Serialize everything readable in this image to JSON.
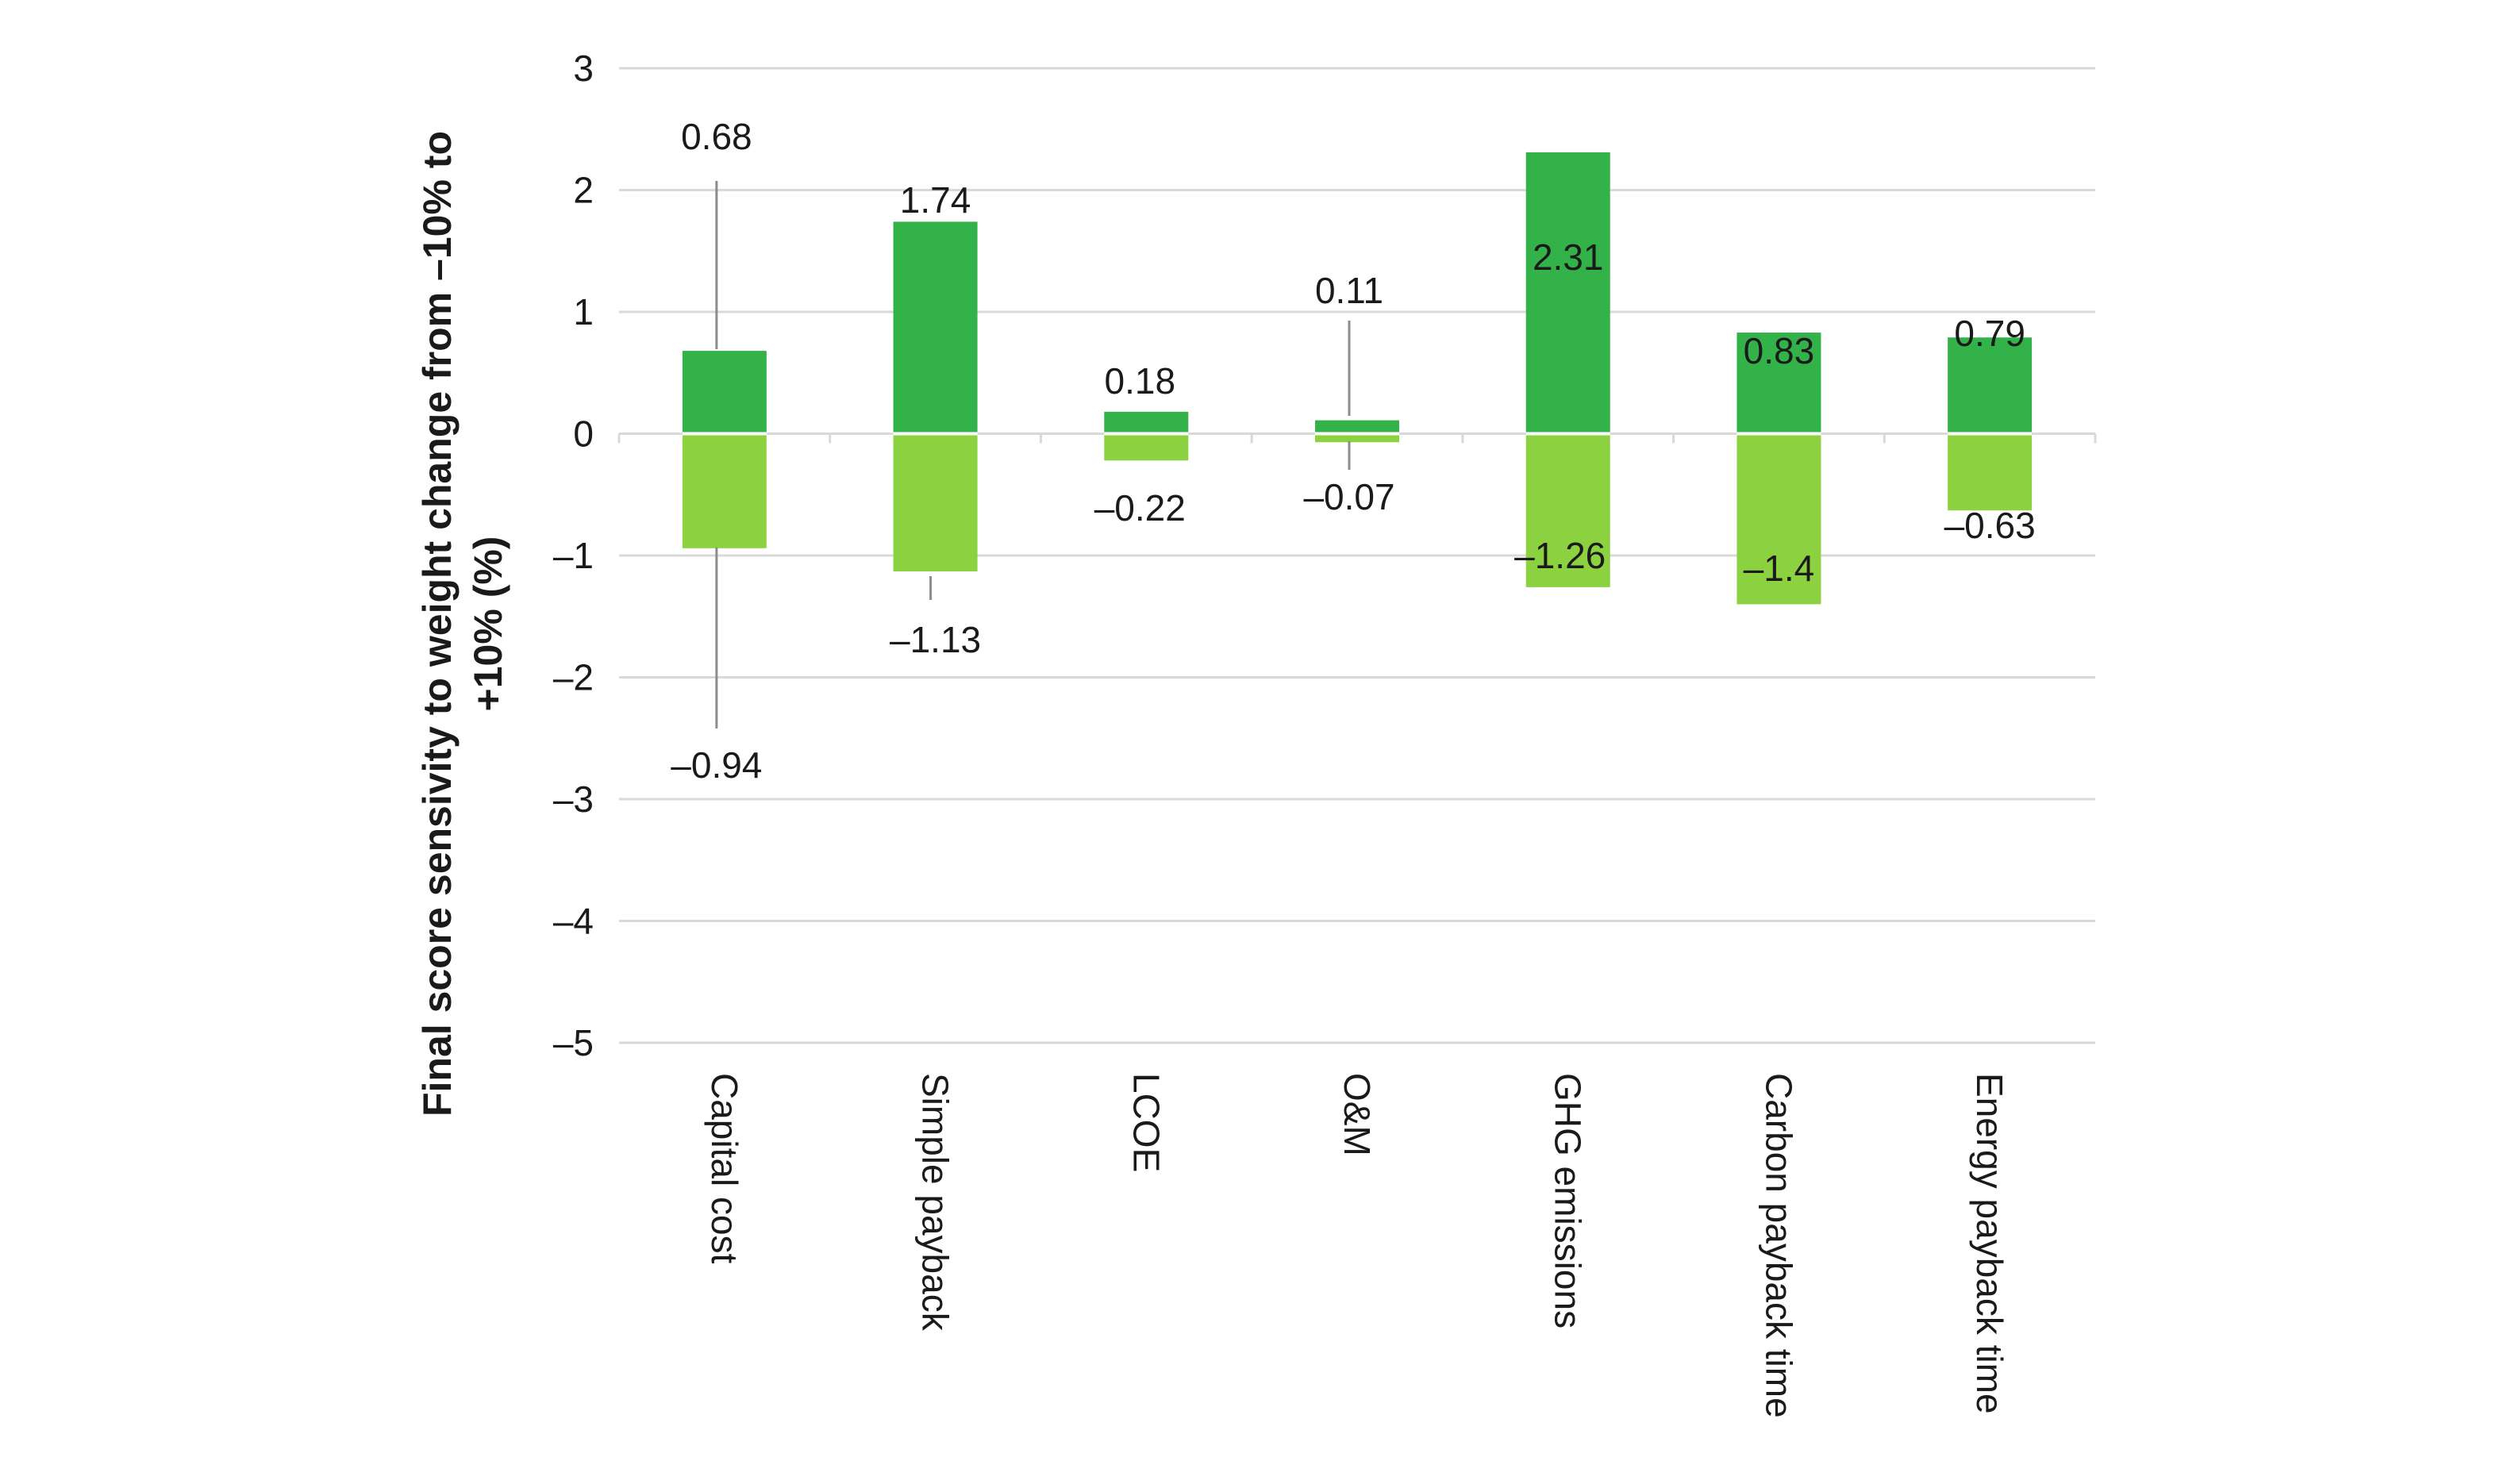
{
  "chart_data": {
    "type": "bar",
    "title": "",
    "xlabel": "",
    "ylabel_lines": [
      "Final score sensivity to weight change from –10% to",
      "+10% (%)"
    ],
    "ylim": [
      -5,
      3
    ],
    "yticks": [
      3,
      2,
      1,
      0,
      -1,
      -2,
      -3,
      -4,
      -5
    ],
    "ytick_labels": [
      "3",
      "2",
      "1",
      "0",
      "–1",
      "–2",
      "–3",
      "–4",
      "–5"
    ],
    "categories": [
      "Capital cost",
      "Simple payback",
      "LCOE",
      "O&M",
      "GHG emissions",
      "Carbon payback time",
      "Energy payback time"
    ],
    "series": [
      {
        "color": "#33b249",
        "values": [
          0.68,
          1.74,
          0.18,
          0.11,
          2.31,
          0.83,
          0.79
        ],
        "labels": [
          "0.68",
          "1.74",
          "0.18",
          "0.11",
          "2.31",
          "0.83",
          "0.79"
        ]
      },
      {
        "color": "#8cd13f",
        "values": [
          -0.94,
          -1.13,
          -0.22,
          -0.07,
          -1.26,
          -1.4,
          -0.63
        ],
        "labels": [
          "–0.94",
          "–1.13",
          "–0.22",
          "–0.07",
          "–1.26",
          "–1.4",
          "–0.63"
        ]
      }
    ],
    "grid": true,
    "legend": "none",
    "stacked": true
  }
}
